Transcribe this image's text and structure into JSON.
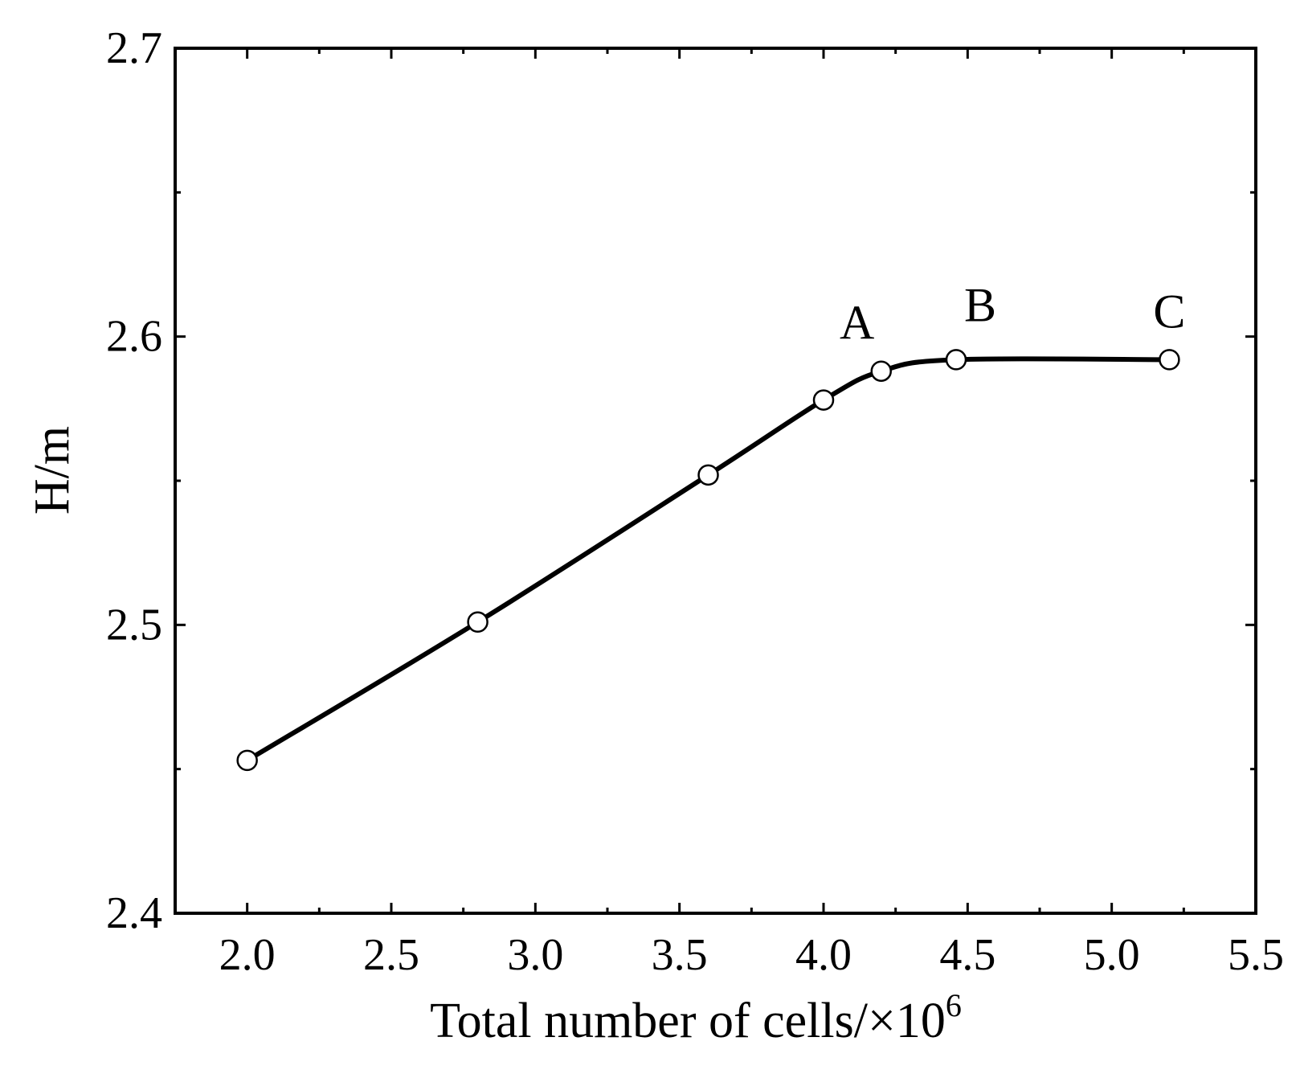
{
  "chart_data": {
    "type": "line",
    "xlabel": "Total number of cells/×10",
    "xlabel_superscript": "6",
    "ylabel": "H/m",
    "xlim": [
      1.75,
      5.5
    ],
    "ylim": [
      2.4,
      2.7
    ],
    "x_ticks": [
      "2.0",
      "2.5",
      "3.0",
      "3.5",
      "4.0",
      "4.5",
      "5.0",
      "5.5"
    ],
    "y_ticks": [
      "2.4",
      "2.5",
      "2.6",
      "2.7"
    ],
    "grid": false,
    "legend": "none",
    "series": [
      {
        "x": [
          2.0,
          2.8,
          3.6,
          4.0,
          4.2,
          4.46,
          5.2
        ],
        "y": [
          2.453,
          2.501,
          2.552,
          2.578,
          2.588,
          2.592,
          2.592
        ]
      }
    ],
    "point_labels": [
      {
        "text": "A",
        "x": 4.2,
        "y": 2.588
      },
      {
        "text": "B",
        "x": 4.46,
        "y": 2.592
      },
      {
        "text": "C",
        "x": 5.2,
        "y": 2.592
      }
    ],
    "colors": {
      "line": "#000000",
      "marker_fill": "#ffffff"
    }
  }
}
